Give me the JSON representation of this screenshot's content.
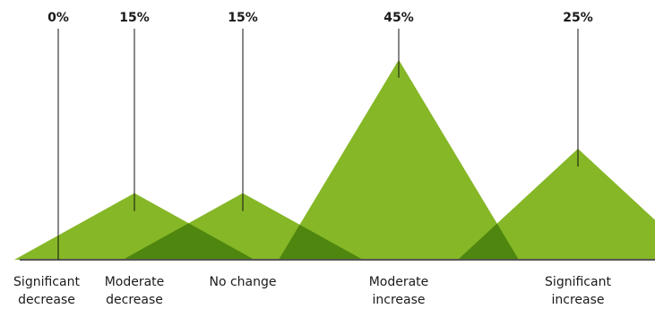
{
  "chart_data": {
    "type": "area",
    "title": "",
    "xlabel": "",
    "ylabel": "",
    "ylim": [
      0,
      50
    ],
    "grid": false,
    "legend": "none",
    "categories": [
      [
        "Significant",
        "decrease"
      ],
      [
        "Moderate",
        "decrease"
      ],
      [
        "No change"
      ],
      [
        "Moderate",
        "increase"
      ],
      [
        "Significant",
        "increase"
      ]
    ],
    "values": [
      0,
      15,
      15,
      45,
      25
    ],
    "value_labels": [
      "0%",
      "15%",
      "15%",
      "45%",
      "25%"
    ],
    "colors": {
      "fill": "#85b726",
      "overlap": "#4e860f",
      "axis": "#555555",
      "pointer": "#111111"
    }
  }
}
